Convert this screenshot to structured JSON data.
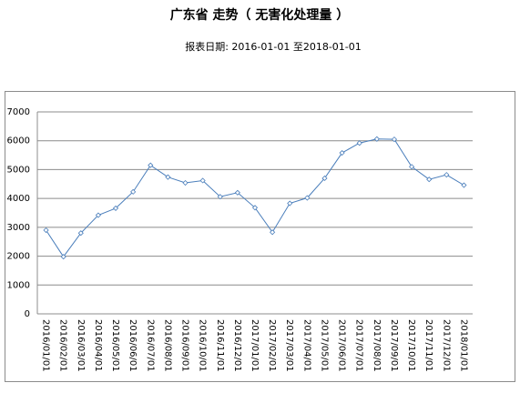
{
  "chart_data": {
    "type": "line",
    "title": "广东省  走势（ 无害化处理量 ）",
    "subtitle": "报表日期: 2016-01-01 至2018-01-01",
    "categories": [
      "2016/01/01",
      "2016/02/01",
      "2016/03/01",
      "2016/04/01",
      "2016/05/01",
      "2016/06/01",
      "2016/07/01",
      "2016/08/01",
      "2016/09/01",
      "2016/10/01",
      "2016/11/01",
      "2016/12/01",
      "2017/01/01",
      "2017/02/01",
      "2017/03/01",
      "2017/04/01",
      "2017/05/01",
      "2017/06/01",
      "2017/07/01",
      "2017/08/01",
      "2017/09/01",
      "2017/10/01",
      "2017/11/01",
      "2017/12/01",
      "2018/01/01"
    ],
    "values": [
      2900,
      1980,
      2800,
      3420,
      3660,
      4230,
      5150,
      4740,
      4540,
      4620,
      4060,
      4200,
      3680,
      2830,
      3830,
      4020,
      4700,
      5580,
      5920,
      6060,
      6050,
      5100,
      4660,
      4820,
      4460
    ],
    "color": "#4a7ebb",
    "ylim": [
      0,
      7000
    ],
    "yticks": [
      0,
      1000,
      2000,
      3000,
      4000,
      5000,
      6000,
      7000
    ],
    "grid": true
  }
}
